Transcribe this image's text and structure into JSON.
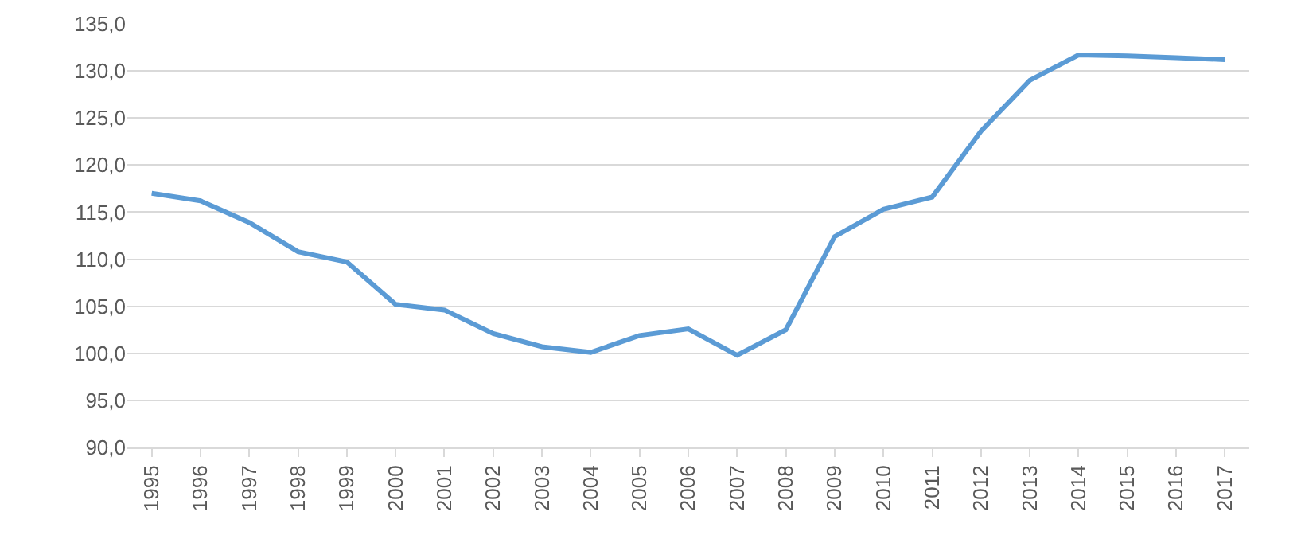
{
  "chart_data": {
    "type": "line",
    "categories": [
      "1995",
      "1996",
      "1997",
      "1998",
      "1999",
      "2000",
      "2001",
      "2002",
      "2003",
      "2004",
      "2005",
      "2006",
      "2007",
      "2008",
      "2009",
      "2010",
      "2011",
      "2012",
      "2013",
      "2014",
      "2015",
      "2016",
      "2017"
    ],
    "series": [
      {
        "color": "#5b9bd5",
        "values": [
          117.0,
          116.2,
          113.9,
          110.8,
          109.7,
          105.2,
          104.6,
          102.1,
          100.7,
          100.1,
          101.9,
          102.6,
          99.8,
          102.5,
          112.4,
          115.3,
          116.6,
          123.6,
          129.0,
          131.7,
          131.6,
          131.4,
          131.2
        ]
      }
    ],
    "ylim": [
      90,
      135
    ],
    "yticks": [
      {
        "value": 90,
        "label": "90,0"
      },
      {
        "value": 95,
        "label": "95,0"
      },
      {
        "value": 100,
        "label": "100,0"
      },
      {
        "value": 105,
        "label": "105,0"
      },
      {
        "value": 110,
        "label": "110,0"
      },
      {
        "value": 115,
        "label": "115,0"
      },
      {
        "value": 120,
        "label": "120,0"
      },
      {
        "value": 125,
        "label": "125,0"
      },
      {
        "value": 130,
        "label": "130,0"
      },
      {
        "value": 135,
        "label": "135,0"
      }
    ],
    "grid": "y",
    "marker": "none",
    "line_style": "solid"
  }
}
